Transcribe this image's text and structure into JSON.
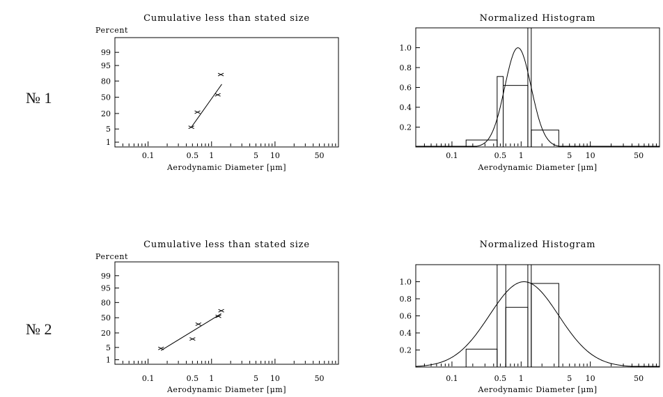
{
  "row_labels": [
    "№ 1",
    "№ 2"
  ],
  "chart_data": [
    {
      "type": "scatter",
      "panel": "row1-cumulative",
      "title": "Cumulative less than stated size",
      "ylabel": "Percent",
      "xlabel": "Aerodynamic Diameter [μm]",
      "x_scale": "log",
      "y_scale": "probability",
      "xlim": [
        0.03,
        100
      ],
      "ylim": [
        0.5,
        99.9
      ],
      "xticks": [
        "0.1",
        "0.5",
        "1",
        "5",
        "10",
        "50"
      ],
      "yticks": [
        "99",
        "95",
        "80",
        "50",
        "20",
        "5",
        "1"
      ],
      "points": [
        {
          "x": 0.48,
          "y": 6
        },
        {
          "x": 0.6,
          "y": 22
        },
        {
          "x": 1.25,
          "y": 55
        },
        {
          "x": 1.4,
          "y": 88
        }
      ],
      "fit_line": [
        {
          "x": 0.48,
          "y": 6
        },
        {
          "x": 1.45,
          "y": 75
        }
      ]
    },
    {
      "type": "bar",
      "panel": "row1-histogram",
      "title": "Normalized Histogram",
      "xlabel": "Aerodynamic Diameter [μm]",
      "x_scale": "log",
      "xlim": [
        0.03,
        100
      ],
      "ylim": [
        0,
        1.2
      ],
      "xticks": [
        "0.1",
        "0.5",
        "1",
        "5",
        "10",
        "50"
      ],
      "yticks": [
        "1.0",
        "0.8",
        "0.6",
        "0.4",
        "0.2"
      ],
      "bins": [
        {
          "from": 0.16,
          "to": 0.45,
          "value": 0.07
        },
        {
          "from": 0.45,
          "to": 0.55,
          "value": 0.71
        },
        {
          "from": 0.55,
          "to": 1.25,
          "value": 0.62
        },
        {
          "from": 1.25,
          "to": 1.4,
          "value": 1.2
        },
        {
          "from": 1.4,
          "to": 3.5,
          "value": 0.17
        }
      ],
      "curve": {
        "type": "lognormal",
        "peak_x": 0.9,
        "peak_y": 1.0,
        "log10_sigma": 0.19
      }
    },
    {
      "type": "scatter",
      "panel": "row2-cumulative",
      "title": "Cumulative less than stated size",
      "ylabel": "Percent",
      "xlabel": "Aerodynamic Diameter [μm]",
      "x_scale": "log",
      "y_scale": "probability",
      "xlim": [
        0.03,
        100
      ],
      "ylim": [
        0.5,
        99.9
      ],
      "xticks": [
        "0.1",
        "0.5",
        "1",
        "5",
        "10",
        "50"
      ],
      "yticks": [
        "99",
        "95",
        "80",
        "50",
        "20",
        "5",
        "1"
      ],
      "points": [
        {
          "x": 0.16,
          "y": 4.5
        },
        {
          "x": 0.5,
          "y": 12
        },
        {
          "x": 0.62,
          "y": 36
        },
        {
          "x": 1.28,
          "y": 53
        },
        {
          "x": 1.42,
          "y": 65
        }
      ],
      "fit_line": [
        {
          "x": 0.16,
          "y": 3.5
        },
        {
          "x": 1.42,
          "y": 59
        }
      ]
    },
    {
      "type": "bar",
      "panel": "row2-histogram",
      "title": "Normalized Histogram",
      "xlabel": "Aerodynamic Diameter [μm]",
      "x_scale": "log",
      "xlim": [
        0.03,
        100
      ],
      "ylim": [
        0,
        1.2
      ],
      "xticks": [
        "0.1",
        "0.5",
        "1",
        "5",
        "10",
        "50"
      ],
      "yticks": [
        "1.0",
        "0.8",
        "0.6",
        "0.4",
        "0.2"
      ],
      "bins": [
        {
          "from": 0.16,
          "to": 0.45,
          "value": 0.21
        },
        {
          "from": 0.45,
          "to": 0.6,
          "value": 1.2
        },
        {
          "from": 0.6,
          "to": 1.25,
          "value": 0.7
        },
        {
          "from": 1.25,
          "to": 1.4,
          "value": 1.2
        },
        {
          "from": 1.4,
          "to": 3.5,
          "value": 0.98
        }
      ],
      "curve": {
        "type": "lognormal",
        "peak_x": 1.1,
        "peak_y": 1.0,
        "log10_sigma": 0.5
      }
    }
  ]
}
